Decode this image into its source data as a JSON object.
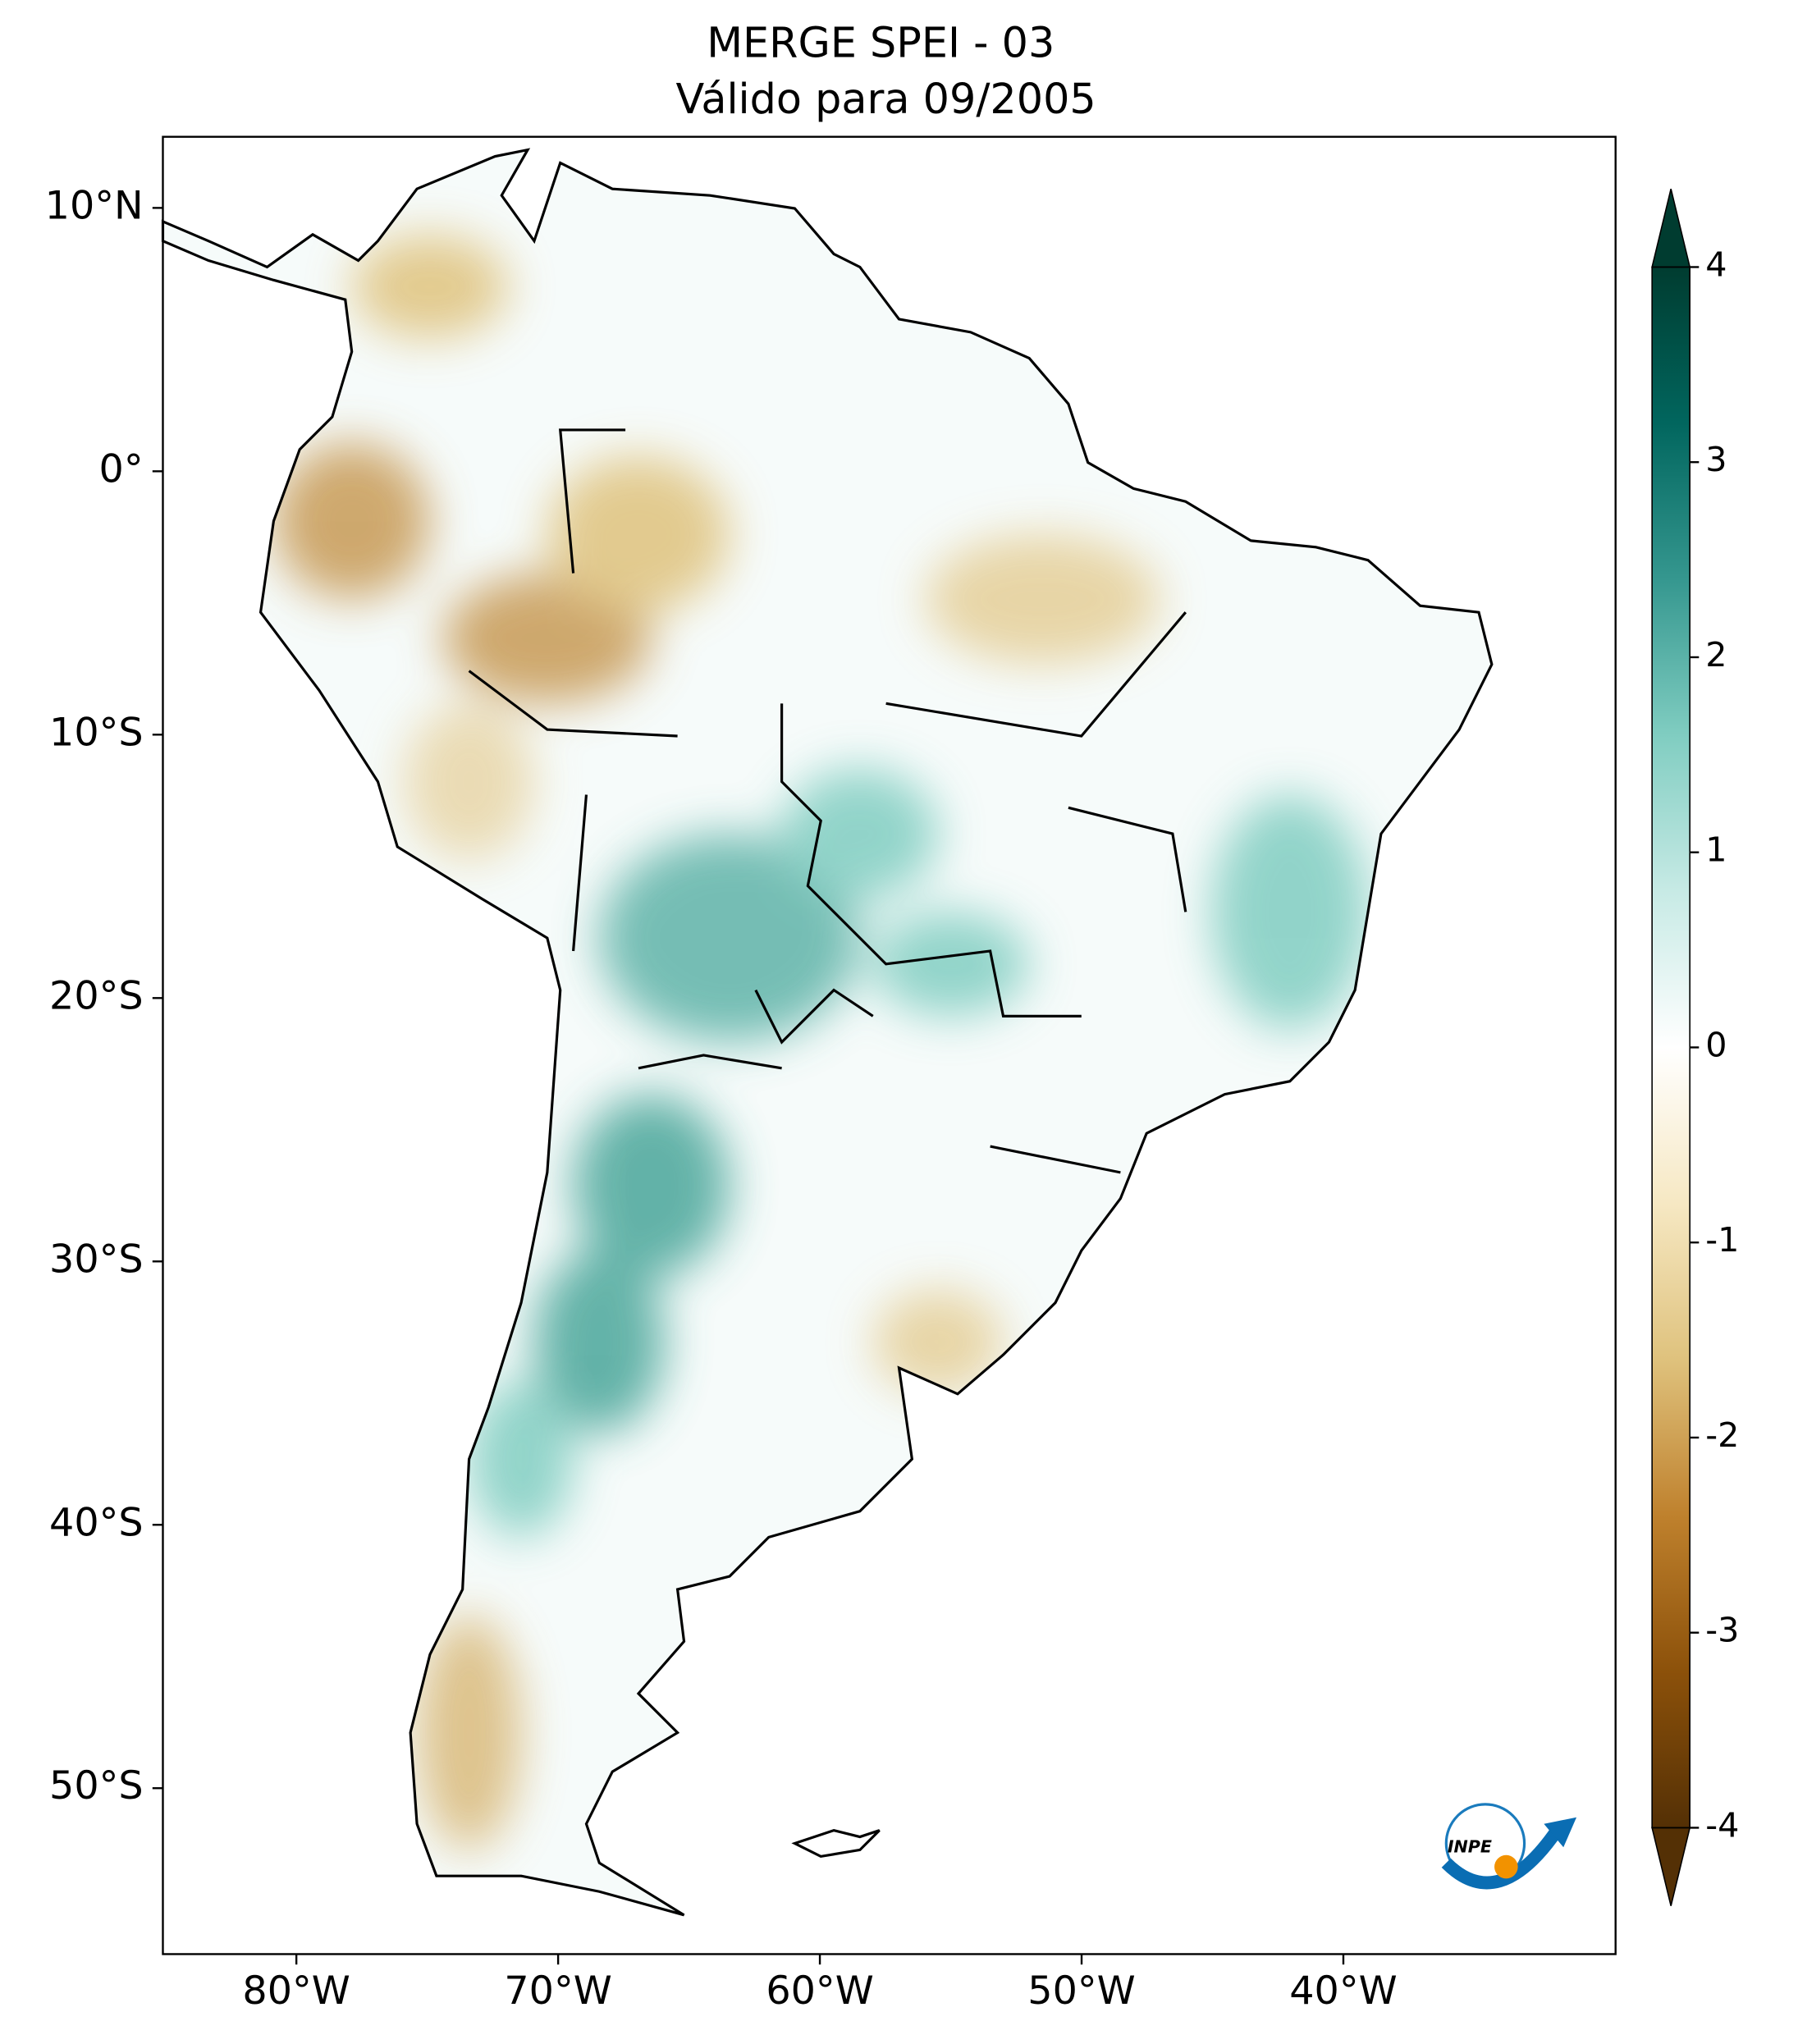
{
  "chart_data": {
    "type": "map",
    "title": "MERGE   SPEI - 03",
    "subtitle": "Válido para 09/2005",
    "xlim": [
      -85.1,
      -29.6
    ],
    "ylim": [
      -56.3,
      12.7
    ],
    "xticks": [
      {
        "value": -80,
        "label": "80°W"
      },
      {
        "value": -70,
        "label": "70°W"
      },
      {
        "value": -60,
        "label": "60°W"
      },
      {
        "value": -50,
        "label": "50°W"
      },
      {
        "value": -40,
        "label": "40°W"
      }
    ],
    "yticks": [
      {
        "value": 10,
        "label": "10°N"
      },
      {
        "value": 0,
        "label": "0°"
      },
      {
        "value": -10,
        "label": "10°S"
      },
      {
        "value": -20,
        "label": "20°S"
      },
      {
        "value": -30,
        "label": "30°S"
      },
      {
        "value": -40,
        "label": "40°S"
      },
      {
        "value": -50,
        "label": "50°S"
      }
    ],
    "colorbar": {
      "lim": [
        -4,
        4
      ],
      "ticks": [
        -4,
        -3,
        -2,
        -1,
        0,
        1,
        2,
        3,
        4
      ],
      "colors": [
        "#543005",
        "#8c510a",
        "#bf812d",
        "#dfc27d",
        "#f6e8c3",
        "#ffffff",
        "#c7eae5",
        "#80cdc1",
        "#35978f",
        "#01665e",
        "#003c30"
      ]
    },
    "logo_text": "INPE"
  }
}
